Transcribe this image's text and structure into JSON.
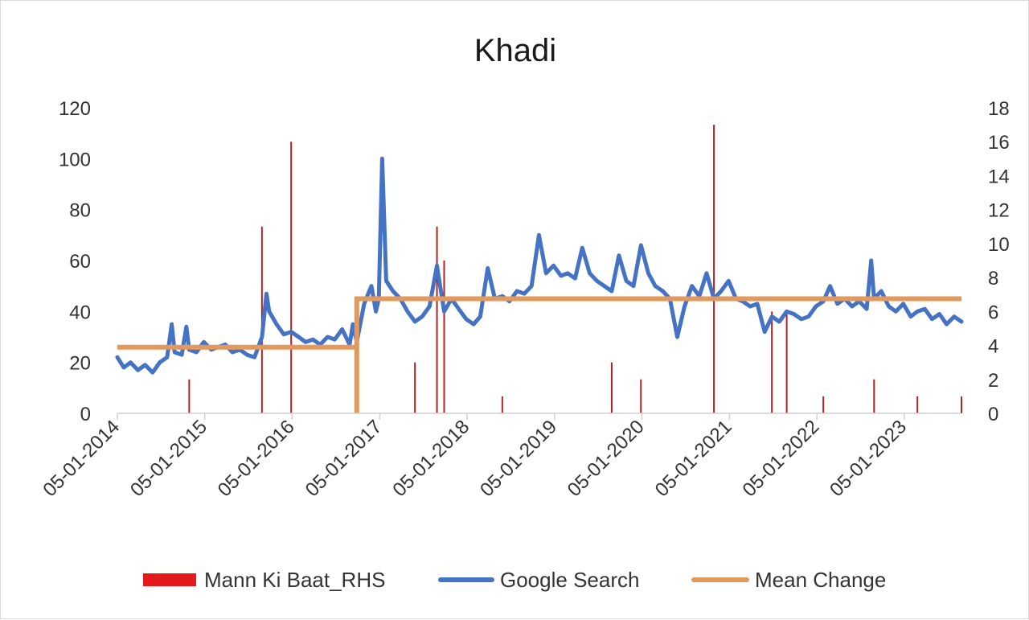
{
  "chart_data": {
    "type": "line",
    "title": "Khadi",
    "xlabel": "",
    "ylabel": "",
    "x_range": [
      "05-01-2014",
      "2023-09-01"
    ],
    "ylim": [
      0,
      120
    ],
    "y2lim": [
      0,
      18
    ],
    "y_ticks": [
      "0",
      "20",
      "40",
      "60",
      "80",
      "100",
      "120"
    ],
    "y2_ticks": [
      "0",
      "2",
      "4",
      "6",
      "8",
      "10",
      "12",
      "14",
      "16",
      "18"
    ],
    "x_ticks": [
      "05-01-2014",
      "05-01-2015",
      "05-01-2016",
      "05-01-2017",
      "05-01-2018",
      "05-01-2019",
      "05-01-2020",
      "05-01-2021",
      "05-01-2022",
      "05-01-2023"
    ],
    "grid": false,
    "legend_position": "bottom",
    "colors": {
      "mann_ki_baat": "#b22222",
      "google_search": "#4472c4",
      "mean_change": "#e3995b",
      "legend_mann_ki_baat": "#e51a1a"
    },
    "series": [
      {
        "name": "Mann Ki Baat_RHS",
        "type": "bar",
        "axis": "right",
        "x": [
          "2014-11-01",
          "2015-09-01",
          "2016-01-01",
          "2017-06-01",
          "2017-09-01",
          "2017-10-01",
          "2018-06-01",
          "2019-09-01",
          "2020-01-01",
          "2020-11-01",
          "2021-07-01",
          "2021-09-01",
          "2022-02-01",
          "2022-09-01",
          "2023-03-01",
          "2023-09-01"
        ],
        "values": [
          2,
          11,
          16,
          3,
          11,
          9,
          1,
          3,
          2,
          17,
          6,
          6,
          1,
          2,
          1,
          1
        ]
      },
      {
        "name": "Google Search",
        "type": "line",
        "axis": "left",
        "x": [
          "2014-01-05",
          "2014-02-01",
          "2014-03-01",
          "2014-04-01",
          "2014-05-01",
          "2014-06-01",
          "2014-07-01",
          "2014-08-01",
          "2014-08-20",
          "2014-09-01",
          "2014-10-01",
          "2014-10-20",
          "2014-11-01",
          "2014-12-01",
          "2015-01-01",
          "2015-02-01",
          "2015-03-01",
          "2015-04-01",
          "2015-05-01",
          "2015-06-01",
          "2015-07-01",
          "2015-08-01",
          "2015-09-01",
          "2015-09-20",
          "2015-10-01",
          "2015-11-01",
          "2015-12-01",
          "2016-01-01",
          "2016-02-01",
          "2016-03-01",
          "2016-04-01",
          "2016-05-01",
          "2016-06-01",
          "2016-07-01",
          "2016-08-01",
          "2016-09-01",
          "2016-09-15",
          "2016-10-01",
          "2016-11-01",
          "2016-12-01",
          "2016-12-20",
          "2017-01-01",
          "2017-01-15",
          "2017-02-01",
          "2017-03-01",
          "2017-04-01",
          "2017-05-01",
          "2017-06-01",
          "2017-07-01",
          "2017-08-01",
          "2017-09-01",
          "2017-10-01",
          "2017-11-01",
          "2017-12-01",
          "2018-01-01",
          "2018-02-01",
          "2018-03-01",
          "2018-04-01",
          "2018-05-01",
          "2018-06-01",
          "2018-07-01",
          "2018-08-01",
          "2018-09-01",
          "2018-10-01",
          "2018-11-01",
          "2018-12-01",
          "2019-01-01",
          "2019-02-01",
          "2019-03-01",
          "2019-04-01",
          "2019-05-01",
          "2019-06-01",
          "2019-07-01",
          "2019-08-01",
          "2019-09-01",
          "2019-10-01",
          "2019-11-01",
          "2019-12-01",
          "2020-01-01",
          "2020-02-01",
          "2020-03-01",
          "2020-04-01",
          "2020-05-01",
          "2020-06-01",
          "2020-07-01",
          "2020-08-01",
          "2020-09-01",
          "2020-10-01",
          "2020-11-01",
          "2020-12-01",
          "2021-01-01",
          "2021-02-01",
          "2021-03-01",
          "2021-04-01",
          "2021-05-01",
          "2021-06-01",
          "2021-07-01",
          "2021-08-01",
          "2021-09-01",
          "2021-10-01",
          "2021-11-01",
          "2021-12-01",
          "2022-01-01",
          "2022-02-01",
          "2022-03-01",
          "2022-04-01",
          "2022-05-01",
          "2022-06-01",
          "2022-07-01",
          "2022-08-01",
          "2022-08-20",
          "2022-09-01",
          "2022-10-01",
          "2022-11-01",
          "2022-12-01",
          "2023-01-01",
          "2023-02-01",
          "2023-03-01",
          "2023-04-01",
          "2023-05-01",
          "2023-06-01",
          "2023-07-01",
          "2023-08-01",
          "2023-09-01"
        ],
        "values": [
          22,
          18,
          20,
          17,
          19,
          16,
          20,
          22,
          35,
          24,
          23,
          34,
          25,
          24,
          28,
          25,
          26,
          27,
          24,
          25,
          23,
          22,
          30,
          47,
          40,
          35,
          31,
          32,
          30,
          28,
          29,
          27,
          30,
          29,
          33,
          27,
          35,
          28,
          43,
          50,
          40,
          45,
          100,
          52,
          48,
          45,
          40,
          36,
          38,
          42,
          58,
          40,
          45,
          41,
          37,
          35,
          38,
          57,
          45,
          46,
          44,
          48,
          47,
          50,
          70,
          55,
          58,
          54,
          55,
          53,
          65,
          55,
          52,
          50,
          48,
          62,
          52,
          50,
          66,
          55,
          50,
          48,
          45,
          30,
          42,
          50,
          46,
          55,
          45,
          48,
          52,
          45,
          44,
          42,
          43,
          32,
          38,
          36,
          40,
          39,
          37,
          38,
          42,
          44,
          50,
          43,
          45,
          42,
          44,
          41,
          60,
          45,
          48,
          42,
          40,
          43,
          38,
          40,
          41,
          37,
          39,
          35,
          38,
          36
        ]
      },
      {
        "name": "Mean Change",
        "type": "step",
        "axis": "left",
        "x": [
          "2014-01-05",
          "2016-10-01",
          "2016-10-01",
          "2016-10-01",
          "2016-10-01",
          "2023-09-01"
        ],
        "values": [
          26,
          26,
          0,
          0,
          45,
          45
        ]
      }
    ]
  }
}
